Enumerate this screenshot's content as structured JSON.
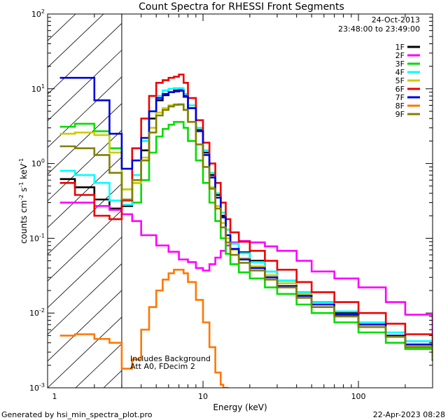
{
  "chart_data": {
    "type": "line",
    "title": "Count Spectra for RHESSI Front Segments",
    "xlabel": "Energy (keV)",
    "ylabel_parts": {
      "base": "counts cm",
      "exp1": "-2",
      "mid": " s",
      "exp2": "-1",
      "tail": " keV",
      "exp3": "-1"
    },
    "xscale": "log",
    "yscale": "log",
    "xlim": [
      1,
      300
    ],
    "ylim": [
      0.001,
      100
    ],
    "x_ticks": [
      {
        "value": 10,
        "label": "10"
      },
      {
        "value": 100,
        "label": "100"
      }
    ],
    "y_ticks": [
      {
        "value": 0.001,
        "base": "10",
        "exp": "-3"
      },
      {
        "value": 0.01,
        "base": "10",
        "exp": "-2"
      },
      {
        "value": 0.1,
        "base": "10",
        "exp": "-1"
      },
      {
        "value": 1,
        "base": "10",
        "exp": "0"
      },
      {
        "value": 10,
        "base": "10",
        "exp": "1"
      },
      {
        "value": 100,
        "base": "10",
        "exp": "2"
      }
    ],
    "x_minor": [
      1,
      2,
      3,
      4,
      5,
      6,
      7,
      8,
      9,
      20,
      30,
      40,
      50,
      60,
      70,
      80,
      90,
      200,
      300
    ],
    "hatch_region": {
      "from": 1,
      "to": 3
    },
    "date": "24-Oct-2013",
    "time_range": "23:48:00 to 23:49:00",
    "annotations": [
      "Includes Background",
      "Att A0, FDecim 2"
    ],
    "legend_position": "top-right",
    "series": [
      {
        "name": "1F",
        "color": "#000000",
        "points": [
          [
            1.2,
            0.62
          ],
          [
            1.5,
            0.48
          ],
          [
            2,
            0.33
          ],
          [
            2.5,
            0.25
          ],
          [
            3,
            0.27
          ],
          [
            3.5,
            0.55
          ],
          [
            4,
            1.5
          ],
          [
            4.5,
            4
          ],
          [
            5,
            7
          ],
          [
            5.5,
            8.2
          ],
          [
            6,
            9
          ],
          [
            6.5,
            9.5
          ],
          [
            7,
            9.6
          ],
          [
            7.5,
            8
          ],
          [
            8,
            5.5
          ],
          [
            9,
            2.8
          ],
          [
            10,
            1.4
          ],
          [
            11,
            0.7
          ],
          [
            12,
            0.38
          ],
          [
            13,
            0.2
          ],
          [
            14,
            0.13
          ],
          [
            15,
            0.085
          ],
          [
            17,
            0.065
          ],
          [
            20,
            0.05
          ],
          [
            25,
            0.036
          ],
          [
            30,
            0.027
          ],
          [
            40,
            0.019
          ],
          [
            50,
            0.014
          ],
          [
            70,
            0.01
          ],
          [
            100,
            0.007
          ],
          [
            150,
            0.005
          ],
          [
            200,
            0.0036
          ],
          [
            300,
            0.0023
          ]
        ]
      },
      {
        "name": "2F",
        "color": "#ff00ff",
        "points": [
          [
            1.2,
            0.3
          ],
          [
            1.5,
            0.3
          ],
          [
            2,
            0.27
          ],
          [
            2.5,
            0.24
          ],
          [
            3,
            0.21
          ],
          [
            3.5,
            0.17
          ],
          [
            4,
            0.11
          ],
          [
            5,
            0.08
          ],
          [
            6,
            0.066
          ],
          [
            7,
            0.052
          ],
          [
            8,
            0.048
          ],
          [
            9,
            0.04
          ],
          [
            10,
            0.037
          ],
          [
            11,
            0.045
          ],
          [
            12,
            0.055
          ],
          [
            13,
            0.068
          ],
          [
            14,
            0.08
          ],
          [
            15,
            0.088
          ],
          [
            17,
            0.092
          ],
          [
            20,
            0.088
          ],
          [
            25,
            0.078
          ],
          [
            30,
            0.068
          ],
          [
            40,
            0.05
          ],
          [
            50,
            0.036
          ],
          [
            70,
            0.029
          ],
          [
            100,
            0.022
          ],
          [
            150,
            0.014
          ],
          [
            200,
            0.0095
          ],
          [
            300,
            0.0053
          ]
        ]
      },
      {
        "name": "3F",
        "color": "#00dd00",
        "points": [
          [
            1.2,
            3.1
          ],
          [
            1.5,
            3.4
          ],
          [
            2,
            2.7
          ],
          [
            2.5,
            1.6
          ],
          [
            3,
            0.45
          ],
          [
            3.5,
            0.3
          ],
          [
            4,
            0.6
          ],
          [
            4.5,
            1.4
          ],
          [
            5,
            2.3
          ],
          [
            5.5,
            2.9
          ],
          [
            6,
            3.3
          ],
          [
            6.5,
            3.6
          ],
          [
            7,
            3.6
          ],
          [
            7.5,
            3
          ],
          [
            8,
            2
          ],
          [
            9,
            1.1
          ],
          [
            10,
            0.55
          ],
          [
            11,
            0.3
          ],
          [
            12,
            0.17
          ],
          [
            13,
            0.1
          ],
          [
            14,
            0.062
          ],
          [
            15,
            0.045
          ],
          [
            17,
            0.035
          ],
          [
            20,
            0.029
          ],
          [
            25,
            0.022
          ],
          [
            30,
            0.018
          ],
          [
            40,
            0.013
          ],
          [
            50,
            0.01
          ],
          [
            70,
            0.0075
          ],
          [
            100,
            0.0055
          ],
          [
            150,
            0.004
          ],
          [
            200,
            0.0033
          ],
          [
            300,
            0.0024
          ]
        ]
      },
      {
        "name": "4F",
        "color": "#00ffff",
        "points": [
          [
            1.2,
            0.8
          ],
          [
            1.5,
            0.7
          ],
          [
            2,
            0.55
          ],
          [
            2.5,
            0.32
          ],
          [
            3,
            0.28
          ],
          [
            3.5,
            0.7
          ],
          [
            4,
            2
          ],
          [
            4.5,
            5
          ],
          [
            5,
            8
          ],
          [
            5.5,
            9.5
          ],
          [
            6,
            10
          ],
          [
            6.5,
            10.2
          ],
          [
            7,
            10.2
          ],
          [
            7.5,
            8.5
          ],
          [
            8,
            6
          ],
          [
            9,
            3
          ],
          [
            10,
            1.5
          ],
          [
            11,
            0.75
          ],
          [
            12,
            0.4
          ],
          [
            13,
            0.22
          ],
          [
            14,
            0.13
          ],
          [
            15,
            0.085
          ],
          [
            17,
            0.063
          ],
          [
            20,
            0.048
          ],
          [
            25,
            0.036
          ],
          [
            30,
            0.027
          ],
          [
            40,
            0.019
          ],
          [
            50,
            0.014
          ],
          [
            70,
            0.0105
          ],
          [
            100,
            0.0075
          ],
          [
            150,
            0.0055
          ],
          [
            200,
            0.0042
          ],
          [
            300,
            0.003
          ]
        ]
      },
      {
        "name": "5F",
        "color": "#cccc00",
        "points": [
          [
            1.2,
            2.5
          ],
          [
            1.5,
            2.6
          ],
          [
            2,
            2.4
          ],
          [
            2.5,
            1.4
          ],
          [
            3,
            0.45
          ],
          [
            3.5,
            0.55
          ],
          [
            4,
            1.2
          ],
          [
            4.5,
            3
          ],
          [
            5,
            4.8
          ],
          [
            5.5,
            5.5
          ],
          [
            6,
            6
          ],
          [
            6.5,
            6.2
          ],
          [
            7,
            6.1
          ],
          [
            7.5,
            5.2
          ],
          [
            8,
            3.6
          ],
          [
            9,
            1.8
          ],
          [
            10,
            0.9
          ],
          [
            11,
            0.48
          ],
          [
            12,
            0.27
          ],
          [
            13,
            0.16
          ],
          [
            14,
            0.1
          ],
          [
            15,
            0.07
          ],
          [
            17,
            0.054
          ],
          [
            20,
            0.042
          ],
          [
            25,
            0.032
          ],
          [
            30,
            0.025
          ],
          [
            40,
            0.018
          ],
          [
            50,
            0.013
          ],
          [
            70,
            0.0095
          ],
          [
            100,
            0.007
          ],
          [
            150,
            0.005
          ],
          [
            200,
            0.0036
          ],
          [
            300,
            0.0025
          ]
        ]
      },
      {
        "name": "6F",
        "color": "#ee0000",
        "points": [
          [
            1.2,
            0.55
          ],
          [
            1.5,
            0.38
          ],
          [
            2,
            0.2
          ],
          [
            2.5,
            0.18
          ],
          [
            3,
            0.32
          ],
          [
            3.5,
            1.6
          ],
          [
            4,
            4
          ],
          [
            4.5,
            8
          ],
          [
            5,
            12
          ],
          [
            5.5,
            13
          ],
          [
            6,
            14
          ],
          [
            6.5,
            14.5
          ],
          [
            7,
            15.5
          ],
          [
            7.5,
            12
          ],
          [
            8,
            7.5
          ],
          [
            9,
            3.8
          ],
          [
            10,
            1.9
          ],
          [
            11,
            1
          ],
          [
            12,
            0.55
          ],
          [
            13,
            0.3
          ],
          [
            14,
            0.18
          ],
          [
            15,
            0.12
          ],
          [
            17,
            0.09
          ],
          [
            20,
            0.068
          ],
          [
            25,
            0.05
          ],
          [
            30,
            0.038
          ],
          [
            40,
            0.026
          ],
          [
            50,
            0.019
          ],
          [
            70,
            0.014
          ],
          [
            100,
            0.01
          ],
          [
            150,
            0.0072
          ],
          [
            200,
            0.0052
          ],
          [
            300,
            0.0036
          ]
        ]
      },
      {
        "name": "7F",
        "color": "#0000dd",
        "points": [
          [
            1.2,
            14
          ],
          [
            1.5,
            14
          ],
          [
            2,
            7
          ],
          [
            2.5,
            2.5
          ],
          [
            3,
            0.85
          ],
          [
            3.5,
            1.1
          ],
          [
            4,
            2.2
          ],
          [
            4.5,
            5
          ],
          [
            5,
            7.5
          ],
          [
            5.5,
            8.5
          ],
          [
            6,
            9
          ],
          [
            6.5,
            9.2
          ],
          [
            7,
            9.4
          ],
          [
            7.5,
            7.8
          ],
          [
            8,
            5.5
          ],
          [
            9,
            2.7
          ],
          [
            10,
            1.3
          ],
          [
            11,
            0.65
          ],
          [
            12,
            0.35
          ],
          [
            13,
            0.19
          ],
          [
            14,
            0.11
          ],
          [
            15,
            0.072
          ],
          [
            17,
            0.052
          ],
          [
            20,
            0.04
          ],
          [
            25,
            0.03
          ],
          [
            30,
            0.023
          ],
          [
            40,
            0.017
          ],
          [
            50,
            0.013
          ],
          [
            70,
            0.0095
          ],
          [
            100,
            0.007
          ],
          [
            150,
            0.005
          ],
          [
            200,
            0.0038
          ],
          [
            300,
            0.0026
          ]
        ]
      },
      {
        "name": "8F",
        "color": "#ff7700",
        "points": [
          [
            1.2,
            0.005
          ],
          [
            1.5,
            0.0052
          ],
          [
            2,
            0.0045
          ],
          [
            2.5,
            0.004
          ],
          [
            3,
            0.0018
          ],
          [
            3.5,
            0.0024
          ],
          [
            4,
            0.006
          ],
          [
            4.5,
            0.012
          ],
          [
            5,
            0.02
          ],
          [
            5.5,
            0.028
          ],
          [
            6,
            0.034
          ],
          [
            6.5,
            0.038
          ],
          [
            7,
            0.038
          ],
          [
            7.5,
            0.034
          ],
          [
            8,
            0.026
          ],
          [
            9,
            0.015
          ],
          [
            10,
            0.0075
          ],
          [
            11,
            0.0035
          ],
          [
            12,
            0.0016
          ],
          [
            13,
            0.0011
          ],
          [
            13.5,
            0.001
          ]
        ]
      },
      {
        "name": "9F",
        "color": "#808000",
        "points": [
          [
            1.2,
            1.7
          ],
          [
            1.5,
            1.6
          ],
          [
            2,
            1.3
          ],
          [
            2.5,
            0.75
          ],
          [
            3,
            0.33
          ],
          [
            3.5,
            0.6
          ],
          [
            4,
            1.1
          ],
          [
            4.5,
            2.6
          ],
          [
            5,
            4.4
          ],
          [
            5.5,
            5.2
          ],
          [
            6,
            5.8
          ],
          [
            6.5,
            6.1
          ],
          [
            7,
            6.2
          ],
          [
            7.5,
            5.2
          ],
          [
            8,
            3.6
          ],
          [
            9,
            1.8
          ],
          [
            10,
            0.9
          ],
          [
            11,
            0.46
          ],
          [
            12,
            0.25
          ],
          [
            13,
            0.14
          ],
          [
            14,
            0.088
          ],
          [
            15,
            0.06
          ],
          [
            17,
            0.047
          ],
          [
            20,
            0.037
          ],
          [
            25,
            0.028
          ],
          [
            30,
            0.022
          ],
          [
            40,
            0.016
          ],
          [
            50,
            0.012
          ],
          [
            70,
            0.009
          ],
          [
            100,
            0.0065
          ],
          [
            150,
            0.0048
          ],
          [
            200,
            0.0035
          ],
          [
            300,
            0.0025
          ]
        ]
      }
    ]
  },
  "footer": {
    "generated_by": "Generated by hsi_min_spectra_plot.pro",
    "generated_on": "22-Apr-2023 08:28"
  }
}
